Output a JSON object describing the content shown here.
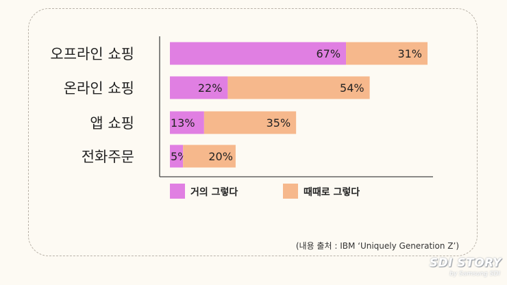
{
  "chart_data": {
    "type": "bar",
    "orientation": "horizontal",
    "stacked": true,
    "categories": [
      "오프라인 쇼핑",
      "온라인 쇼핑",
      "앱 쇼핑",
      "전화주문"
    ],
    "series": [
      {
        "name": "거의 그렇다",
        "values": [
          67,
          22,
          13,
          5
        ],
        "labels": [
          "67%",
          "22%",
          "13%",
          "5%"
        ],
        "color": "#e07fe2"
      },
      {
        "name": "때때로 그렇다",
        "values": [
          31,
          54,
          35,
          20
        ],
        "labels": [
          "31%",
          "54%",
          "35%",
          "20%"
        ],
        "color": "#f6b88c"
      }
    ],
    "xlim": [
      0,
      100
    ],
    "unit": "%",
    "legend_position": "bottom",
    "grid": false
  },
  "source_note": "(내용 출처 : IBM ‘Uniquely Generation Z’)",
  "watermark": {
    "title": "SDI STORY",
    "subtitle": "by Samsung SDI"
  },
  "colors": {
    "background": "#fdfaf3",
    "frame": "#b9b2a8",
    "axis": "#444444",
    "text": "#222222"
  }
}
